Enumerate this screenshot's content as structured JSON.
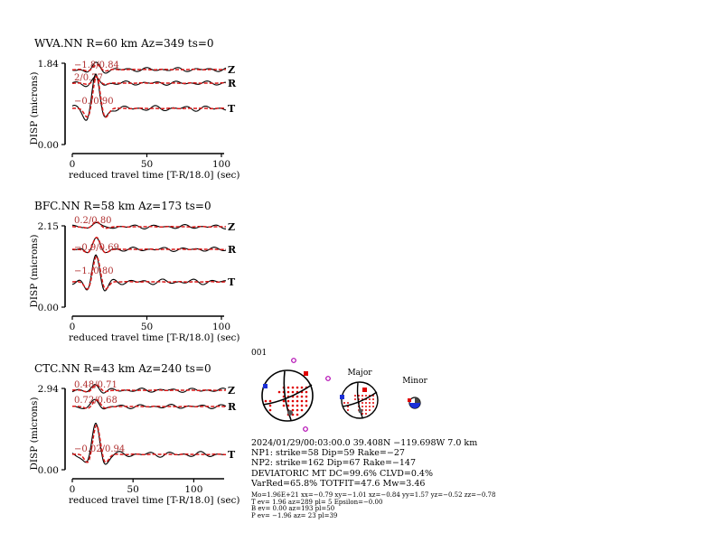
{
  "stations": [
    {
      "title": "WVA.NN R=60 km Az=349 ts=0",
      "ylabel": "DISP (microns)",
      "xlabel": "reduced travel time [T-R/18.0] (sec)",
      "y_max_label": "1.84",
      "y_min_label": "0.00",
      "x_ticks": [
        "0",
        "50",
        "100"
      ],
      "x_range": [
        0,
        100
      ],
      "components": [
        {
          "label": "Z",
          "annotation": "−1.8/0.84"
        },
        {
          "label": "R",
          "annotation": "2/0.77"
        },
        {
          "label": "T",
          "annotation": "−0./0.90"
        }
      ]
    },
    {
      "title": "BFC.NN R=58 km Az=173 ts=0",
      "ylabel": "DISP (microns)",
      "xlabel": "reduced travel time [T-R/18.0] (sec)",
      "y_max_label": "2.15",
      "y_min_label": "0.00",
      "x_ticks": [
        "0",
        "50",
        "100"
      ],
      "x_range": [
        0,
        100
      ],
      "components": [
        {
          "label": "Z",
          "annotation": "0.2/0.80"
        },
        {
          "label": "R",
          "annotation": "−0.9/0.69"
        },
        {
          "label": "T",
          "annotation": "−1./0.80"
        }
      ]
    },
    {
      "title": "CTC.NN R=43 km Az=240 ts=0",
      "ylabel": "DISP (microns)",
      "xlabel": "reduced travel time [T-R/18.0] (sec)",
      "y_max_label": "2.94",
      "y_min_label": "0.00",
      "x_ticks": [
        "0",
        "50",
        "100"
      ],
      "x_range": [
        0,
        125
      ],
      "components": [
        {
          "label": "Z",
          "annotation": "0.48/0.71"
        },
        {
          "label": "R",
          "annotation": "0.72/0.68"
        },
        {
          "label": "T",
          "annotation": "−0.02/0.94"
        }
      ]
    }
  ],
  "beachballs": {
    "event_id": "001",
    "major_label": "Major",
    "minor_label": "Minor"
  },
  "info_lines": [
    "2024/01/29/00:03:00.0 39.408N −119.698W 7.0 km",
    "NP1: strike=58 Dip=59 Rake=−27",
    "NP2: strike=162 Dip=67 Rake=−147",
    "DEVIATORIC MT DC=99.6% CLVD=0.4%",
    "VarRed=65.8% TOTFIT=47.6 Mw=3.46"
  ],
  "info_small_lines": [
    "Mo=1.96E+21 xx=−0.79 xy=−1.01 xz=−0.84 yy=1.57 yz=−0.52 zz=−0.78",
    "T ev=  1.96 az=289 pl= 5 Epsilon=−0.00",
    "B ev=  0.00 az=193 pl=50",
    "P ev= −1.96 az= 23 pl=39"
  ],
  "colors": {
    "observed": "#000000",
    "synthetic": "#d81818",
    "annotation": "#b03030",
    "compression": "#e00000",
    "t_axis": "#e00000",
    "p_axis": "#1a2fd8",
    "b_axis": "#555555",
    "polarity_point": "#b000b0"
  }
}
